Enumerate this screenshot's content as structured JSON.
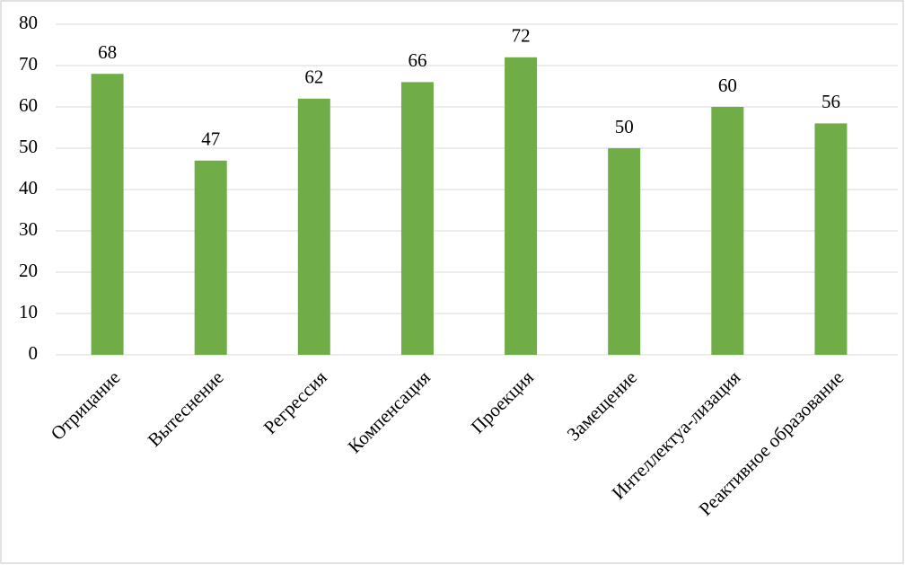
{
  "chart_data": {
    "type": "bar",
    "categories": [
      "Отрицание",
      "Вытеснение",
      "Регрессия",
      "Компенсация",
      "Проекция",
      "Замещение",
      "Интеллектуа-лизация",
      "Реактивное образование"
    ],
    "values": [
      68,
      47,
      62,
      66,
      72,
      50,
      60,
      56
    ],
    "color": "#70ad47",
    "ylim": [
      0,
      80
    ],
    "yticks": [
      0,
      10,
      20,
      30,
      40,
      50,
      60,
      70,
      80
    ],
    "grid": true
  }
}
